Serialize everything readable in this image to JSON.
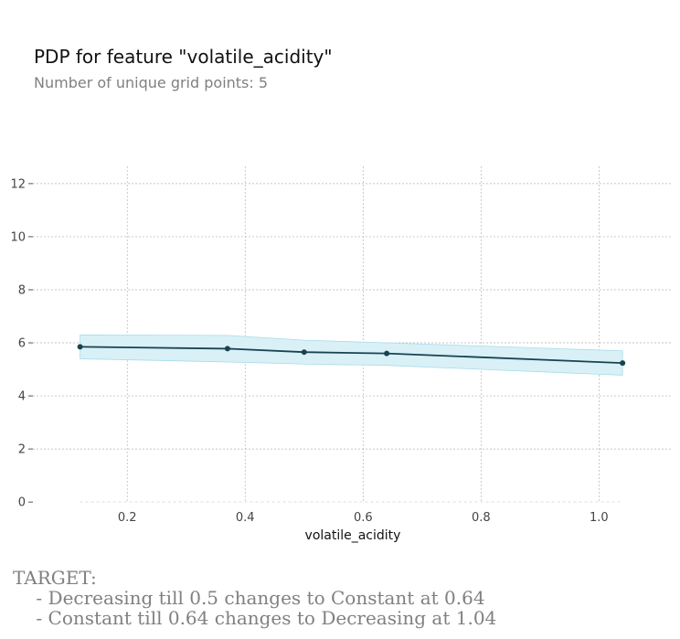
{
  "chart_data": {
    "type": "line",
    "title": "PDP for feature \"volatile_acidity\"",
    "subtitle": "Number of unique grid points: 5",
    "xlabel": "volatile_acidity",
    "ylabel": "",
    "xlim": [
      0.04,
      1.125
    ],
    "ylim": [
      -0.2,
      12.65
    ],
    "xticks": [
      "0.2",
      "0.4",
      "0.6",
      "0.8",
      "1.0"
    ],
    "xtick_values": [
      0.2,
      0.4,
      0.6,
      0.8,
      1.0
    ],
    "yticks": [
      "0",
      "2",
      "4",
      "6",
      "8",
      "10",
      "12"
    ],
    "ytick_values": [
      0,
      2,
      4,
      6,
      8,
      10,
      12
    ],
    "grid": true,
    "series": [
      {
        "x": [
          0.12,
          0.37,
          0.5,
          0.64,
          1.04
        ],
        "values": [
          5.85,
          5.78,
          5.65,
          5.6,
          5.24
        ],
        "upper": [
          6.3,
          6.28,
          6.1,
          6.0,
          5.7
        ],
        "lower": [
          5.4,
          5.28,
          5.2,
          5.15,
          4.78
        ]
      }
    ],
    "colors": {
      "line": "#18434f",
      "band": "#d9f0f7",
      "band_edge": "#a8dcea",
      "grid": "#b3b3b3"
    }
  },
  "notes": {
    "heading": "TARGET:",
    "lines": [
      "    - Decreasing till 0.5 changes to Constant at 0.64",
      "    - Constant till 0.64 changes to Decreasing at 1.04"
    ]
  }
}
